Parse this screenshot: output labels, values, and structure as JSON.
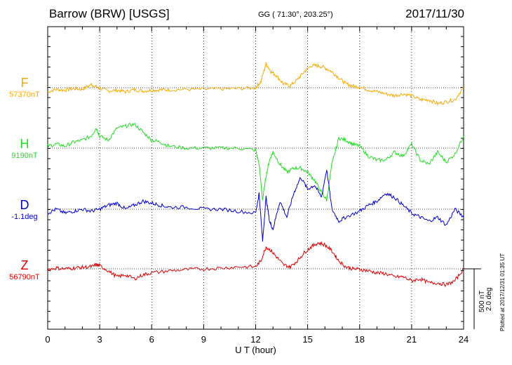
{
  "header": {
    "station": "Barrow (BRW)  [USGS]",
    "coords": "GG ( 71.30°, 203.25°)",
    "date": "2017/11/30"
  },
  "footer": "Plotted at 2017/12/31 01:35 UT",
  "scale": {
    "nt": "500 nT",
    "deg": "2.0 deg"
  },
  "colors": {
    "F": "#f5a800",
    "H": "#22dd22",
    "D": "#0000cc",
    "Z": "#dd0000"
  },
  "chart_data": {
    "type": "line",
    "xlabel": "U T (hour)",
    "xlim": [
      0,
      24
    ],
    "xticks": [
      "0",
      "3",
      "6",
      "9",
      "12",
      "15",
      "18",
      "21",
      "24"
    ],
    "series": [
      {
        "name": "F",
        "baseline": "57370nT",
        "x": [
          0,
          0.5,
          1,
          1.5,
          2,
          2.5,
          2.8,
          3,
          3.5,
          4,
          4.5,
          5,
          5.5,
          6,
          6.5,
          7,
          8,
          9,
          10,
          11,
          12,
          12.3,
          12.6,
          12.9,
          13.2,
          13.6,
          14,
          14.4,
          14.8,
          15.2,
          15.6,
          16,
          16.4,
          16.8,
          17.2,
          17.6,
          18,
          18.5,
          19,
          19.5,
          20,
          20.5,
          21,
          21.5,
          22,
          22.5,
          23,
          23.5,
          24
        ],
        "y": [
          -0.1,
          -0.04,
          -0.06,
          -0.02,
          -0.04,
          0.08,
          0.02,
          -0.02,
          -0.08,
          -0.06,
          -0.1,
          -0.05,
          -0.08,
          -0.06,
          -0.05,
          -0.05,
          -0.04,
          -0.04,
          -0.03,
          -0.02,
          0.0,
          0.15,
          0.6,
          0.4,
          0.3,
          0.1,
          0.05,
          0.2,
          0.4,
          0.55,
          0.55,
          0.5,
          0.4,
          0.25,
          0.1,
          0.04,
          0.02,
          -0.05,
          -0.1,
          -0.15,
          -0.2,
          -0.15,
          -0.2,
          -0.3,
          -0.3,
          -0.4,
          -0.35,
          -0.3,
          0.02
        ]
      },
      {
        "name": "H",
        "baseline": "9190nT",
        "x": [
          0,
          0.5,
          1,
          1.5,
          2,
          2.5,
          2.8,
          3,
          3.5,
          4,
          4.5,
          5,
          5.5,
          6,
          6.5,
          7,
          8,
          9,
          10,
          11,
          12,
          12.2,
          12.4,
          12.6,
          12.8,
          13,
          13.4,
          13.8,
          14.2,
          14.6,
          15,
          15.4,
          15.8,
          16.1,
          16.4,
          16.8,
          17.2,
          17.6,
          18,
          18.5,
          19,
          19.5,
          20,
          20.5,
          21,
          21.5,
          22,
          22.5,
          23,
          23.5,
          24
        ],
        "y": [
          0.05,
          0.1,
          0.05,
          0.15,
          0.2,
          0.3,
          0.5,
          0.3,
          0.2,
          0.5,
          0.55,
          0.6,
          0.4,
          0.2,
          0.15,
          0.05,
          0.0,
          0.0,
          0.0,
          0.0,
          -0.05,
          -0.4,
          -1.3,
          -0.7,
          -0.3,
          -0.1,
          -0.4,
          -0.6,
          -0.5,
          -0.5,
          -0.6,
          -0.8,
          -1.1,
          -1.3,
          -0.4,
          0.25,
          0.2,
          0.1,
          0.05,
          -0.2,
          -0.3,
          -0.3,
          -0.1,
          -0.2,
          0.1,
          -0.3,
          -0.4,
          -0.1,
          -0.35,
          -0.15,
          0.3
        ]
      },
      {
        "name": "D",
        "baseline": "-1.1deg",
        "x": [
          0,
          0.5,
          1,
          1.5,
          2,
          2.5,
          3,
          3.5,
          4,
          4.5,
          5,
          5.5,
          6,
          6.5,
          7,
          8,
          9,
          10,
          11,
          12,
          12.2,
          12.4,
          12.6,
          12.8,
          13,
          13.4,
          13.8,
          14.2,
          14.6,
          15,
          15.4,
          15.8,
          16.1,
          16.4,
          16.8,
          17.2,
          18,
          18.5,
          19,
          19.5,
          20,
          20.5,
          21,
          21.5,
          22,
          22.5,
          23,
          23.5,
          24
        ],
        "y": [
          -0.1,
          0.0,
          -0.1,
          -0.05,
          0.0,
          -0.05,
          0.0,
          0.1,
          0.15,
          0.0,
          0.1,
          0.2,
          0.15,
          0.1,
          0.05,
          0.05,
          0.0,
          0.0,
          -0.05,
          -0.1,
          0.4,
          -0.8,
          0.3,
          -0.3,
          -0.5,
          0.2,
          -0.2,
          0.4,
          0.8,
          0.5,
          0.6,
          0.3,
          1.0,
          0.0,
          -0.3,
          -0.2,
          -0.05,
          0.1,
          0.2,
          0.4,
          0.3,
          0.1,
          -0.1,
          -0.2,
          -0.3,
          -0.2,
          -0.4,
          0.0,
          -0.2
        ]
      },
      {
        "name": "Z",
        "baseline": "56790nT",
        "x": [
          0,
          0.5,
          1,
          1.5,
          2,
          2.5,
          2.8,
          3,
          3.5,
          4,
          4.5,
          5,
          5.5,
          6,
          7,
          8,
          9,
          10,
          11,
          12,
          12.3,
          12.6,
          12.9,
          13.2,
          13.6,
          14,
          14.4,
          14.8,
          15.2,
          15.6,
          16,
          16.4,
          16.8,
          17.2,
          17.6,
          18,
          18.5,
          19,
          19.5,
          20,
          20.5,
          21,
          21.5,
          22,
          22.5,
          23,
          23.5,
          24
        ],
        "y": [
          -0.02,
          0.02,
          0.0,
          0.02,
          0.04,
          0.05,
          0.1,
          0.08,
          -0.05,
          -0.2,
          -0.15,
          -0.25,
          -0.15,
          -0.1,
          -0.05,
          -0.02,
          0.0,
          0.02,
          0.05,
          0.05,
          0.2,
          0.55,
          0.45,
          0.3,
          0.1,
          0.05,
          0.2,
          0.4,
          0.55,
          0.65,
          0.6,
          0.45,
          0.2,
          0.05,
          0.0,
          -0.01,
          -0.05,
          -0.1,
          -0.12,
          -0.2,
          -0.2,
          -0.3,
          -0.25,
          -0.35,
          -0.35,
          -0.4,
          -0.3,
          0.0
        ]
      }
    ]
  }
}
